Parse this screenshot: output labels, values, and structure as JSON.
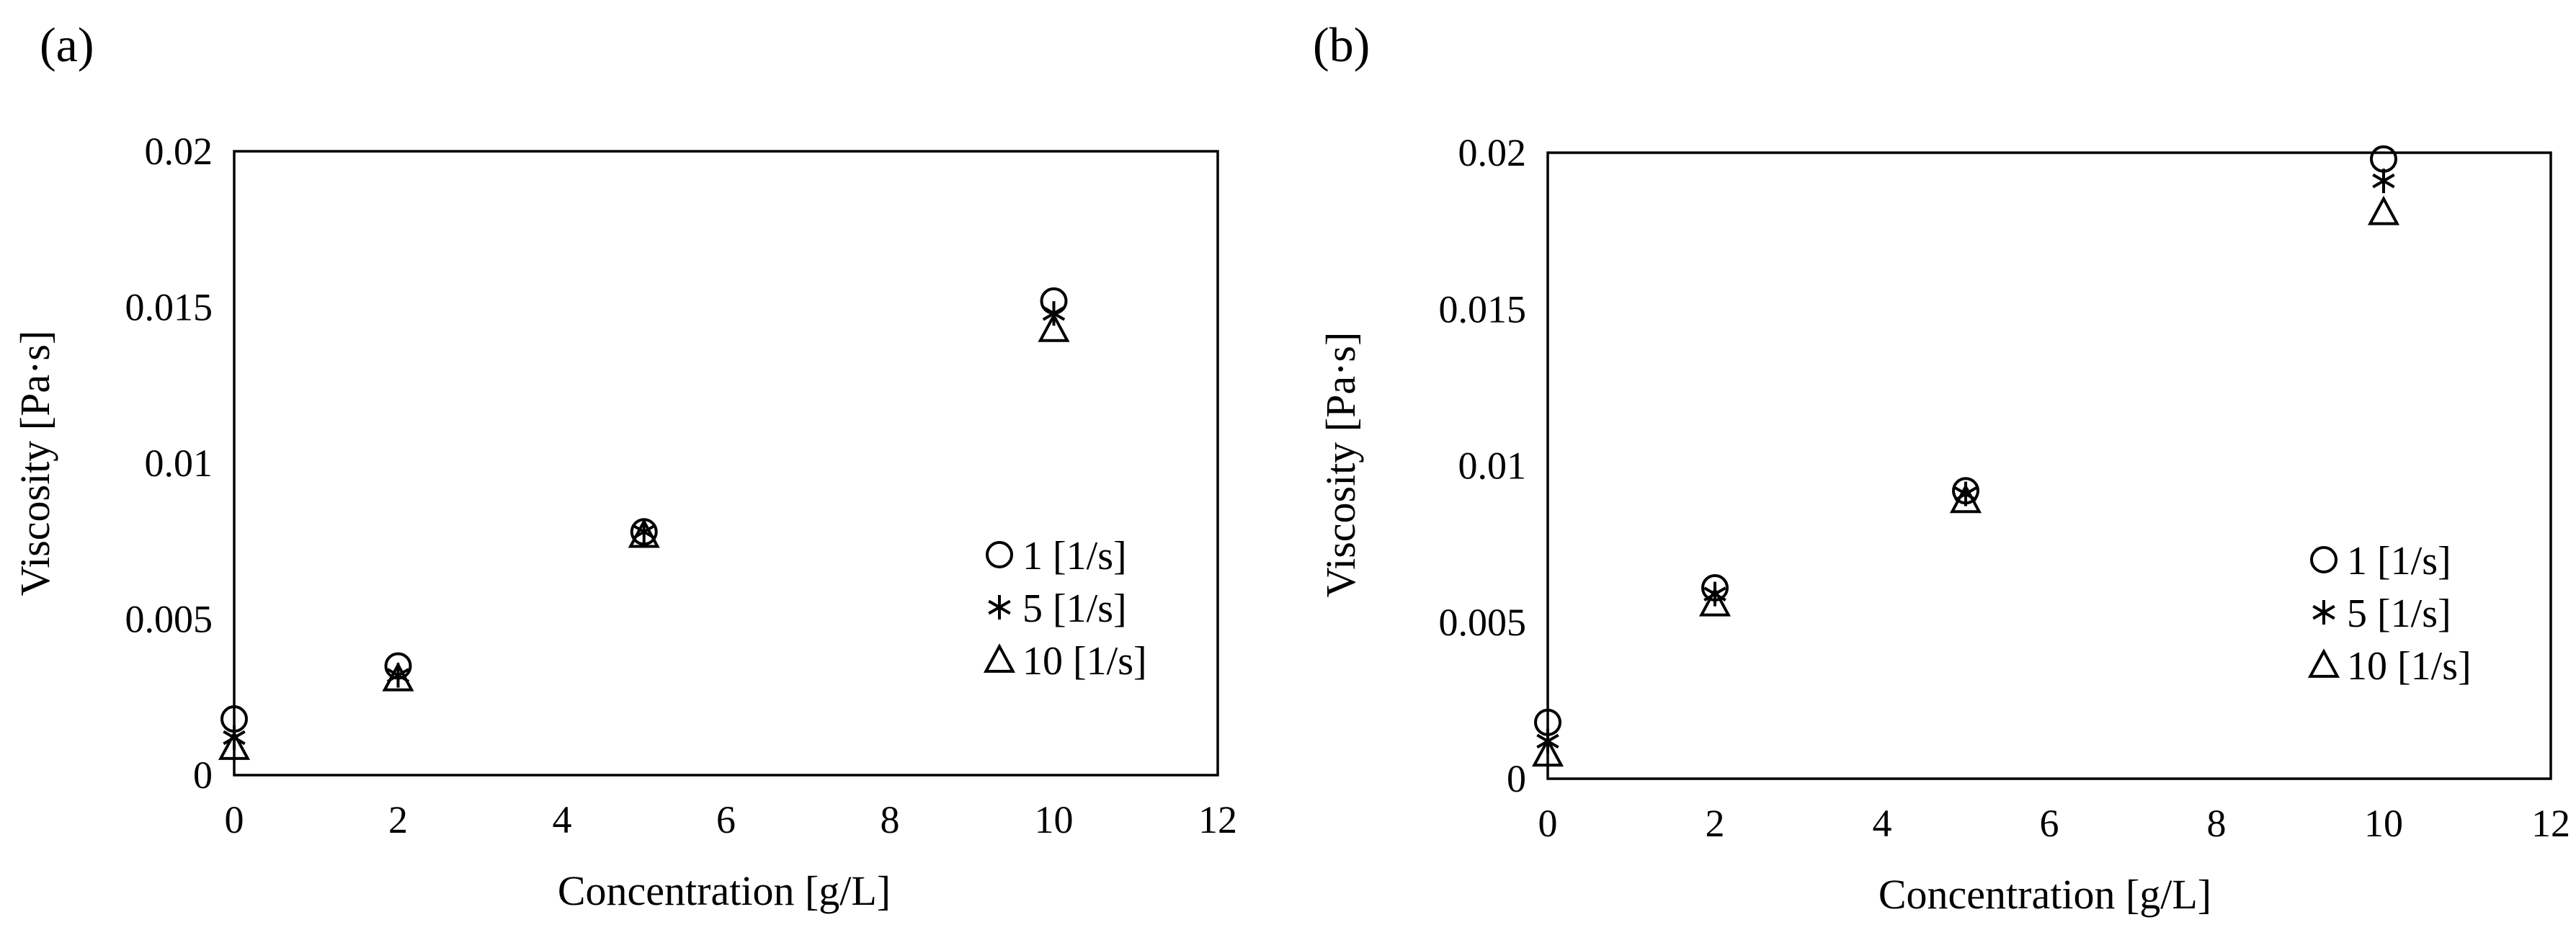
{
  "chart_data": [
    {
      "type": "scatter",
      "panel_label": "(a)",
      "xlabel": "Concentration [g/L]",
      "ylabel": "Viscosity [Pa·s]",
      "xlim": [
        0,
        12
      ],
      "ylim": [
        0,
        0.02
      ],
      "x_ticks": [
        "0",
        "2",
        "4",
        "6",
        "8",
        "10",
        "12"
      ],
      "y_ticks": [
        "0",
        "0.005",
        "0.01",
        "0.015",
        "0.02"
      ],
      "grid": false,
      "legend_position": "right",
      "series": [
        {
          "name": "1 [1/s]",
          "marker": "circle",
          "x": [
            0,
            2,
            5,
            10
          ],
          "y": [
            0.0018,
            0.0035,
            0.0078,
            0.0152
          ]
        },
        {
          "name": "5 [1/s]",
          "marker": "asterisk",
          "x": [
            0,
            2,
            5,
            10
          ],
          "y": [
            0.0012,
            0.0032,
            0.0078,
            0.0148
          ]
        },
        {
          "name": "10 [1/s]",
          "marker": "triangle",
          "x": [
            0,
            2,
            5,
            10
          ],
          "y": [
            0.0009,
            0.0031,
            0.0077,
            0.0143
          ]
        }
      ]
    },
    {
      "type": "scatter",
      "panel_label": "(b)",
      "xlabel": "Concentration [g/L]",
      "ylabel": "Viscosity [Pa·s]",
      "xlim": [
        0,
        12
      ],
      "ylim": [
        0,
        0.02
      ],
      "x_ticks": [
        "0",
        "2",
        "4",
        "6",
        "8",
        "10",
        "12"
      ],
      "y_ticks": [
        "0",
        "0.005",
        "0.01",
        "0.015",
        "0.02"
      ],
      "grid": false,
      "legend_position": "right",
      "series": [
        {
          "name": "1 [1/s]",
          "marker": "circle",
          "x": [
            0,
            2,
            5,
            10
          ],
          "y": [
            0.0018,
            0.0061,
            0.0092,
            0.0198
          ]
        },
        {
          "name": "5 [1/s]",
          "marker": "asterisk",
          "x": [
            0,
            2,
            5,
            10
          ],
          "y": [
            0.0012,
            0.0059,
            0.0091,
            0.0191
          ]
        },
        {
          "name": "10 [1/s]",
          "marker": "triangle",
          "x": [
            0,
            2,
            5,
            10
          ],
          "y": [
            0.0008,
            0.0056,
            0.0089,
            0.0181
          ]
        }
      ]
    }
  ]
}
